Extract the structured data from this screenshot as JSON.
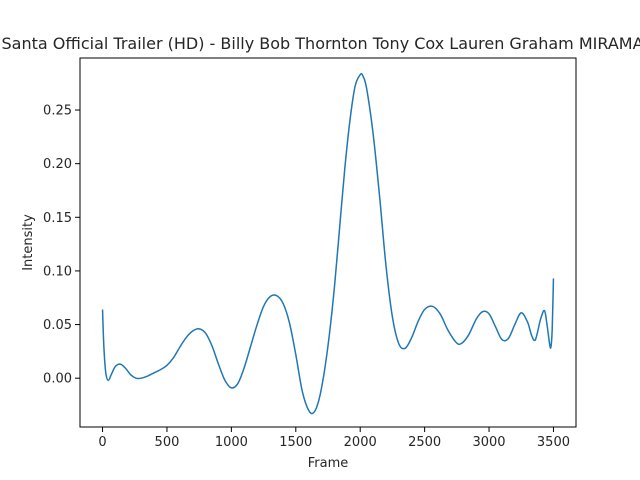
{
  "chart_data": {
    "type": "line",
    "title": "Santa  Official Trailer (HD) - Billy Bob Thornton Tony Cox Lauren Graham  MIRAMAX",
    "xlabel": "Frame",
    "ylabel": "Intensity",
    "xlim": [
      -175,
      3675
    ],
    "ylim": [
      -0.0455,
      0.2985
    ],
    "xticks": [
      0,
      500,
      1000,
      1500,
      2000,
      2500,
      3000,
      3500
    ],
    "yticks": [
      0.0,
      0.05,
      0.1,
      0.15,
      0.2,
      0.25
    ],
    "ytick_labels": [
      "0.00",
      "0.05",
      "0.10",
      "0.15",
      "0.20",
      "0.25"
    ],
    "grid": false,
    "line_color": "#1f77b4",
    "series": [
      {
        "x": [
          0,
          10,
          25,
          45,
          70,
          100,
          140,
          180,
          220,
          260,
          300,
          350,
          400,
          450,
          500,
          550,
          600,
          650,
          700,
          750,
          800,
          850,
          900,
          950,
          1000,
          1050,
          1100,
          1150,
          1200,
          1250,
          1300,
          1350,
          1400,
          1450,
          1500,
          1550,
          1600,
          1640,
          1680,
          1720,
          1760,
          1800,
          1840,
          1880,
          1920,
          1960,
          2000,
          2020,
          2050,
          2100,
          2150,
          2200,
          2250,
          2300,
          2350,
          2400,
          2450,
          2500,
          2560,
          2620,
          2680,
          2740,
          2780,
          2840,
          2900,
          2950,
          3000,
          3050,
          3100,
          3150,
          3200,
          3250,
          3300,
          3330,
          3360,
          3400,
          3430,
          3450,
          3470,
          3480,
          3490,
          3500
        ],
        "y": [
          0.064,
          0.03,
          0.005,
          -0.002,
          0.004,
          0.011,
          0.013,
          0.009,
          0.003,
          0.0,
          0.0,
          0.002,
          0.005,
          0.008,
          0.012,
          0.019,
          0.029,
          0.038,
          0.044,
          0.046,
          0.042,
          0.03,
          0.013,
          -0.002,
          -0.009,
          -0.005,
          0.01,
          0.03,
          0.05,
          0.067,
          0.076,
          0.077,
          0.07,
          0.052,
          0.022,
          -0.012,
          -0.03,
          -0.032,
          -0.02,
          0.005,
          0.04,
          0.085,
          0.14,
          0.195,
          0.24,
          0.272,
          0.283,
          0.282,
          0.27,
          0.228,
          0.17,
          0.105,
          0.057,
          0.032,
          0.028,
          0.038,
          0.053,
          0.064,
          0.067,
          0.06,
          0.045,
          0.034,
          0.032,
          0.04,
          0.055,
          0.062,
          0.06,
          0.048,
          0.036,
          0.037,
          0.05,
          0.061,
          0.052,
          0.04,
          0.036,
          0.055,
          0.063,
          0.05,
          0.032,
          0.029,
          0.045,
          0.093
        ]
      }
    ]
  }
}
